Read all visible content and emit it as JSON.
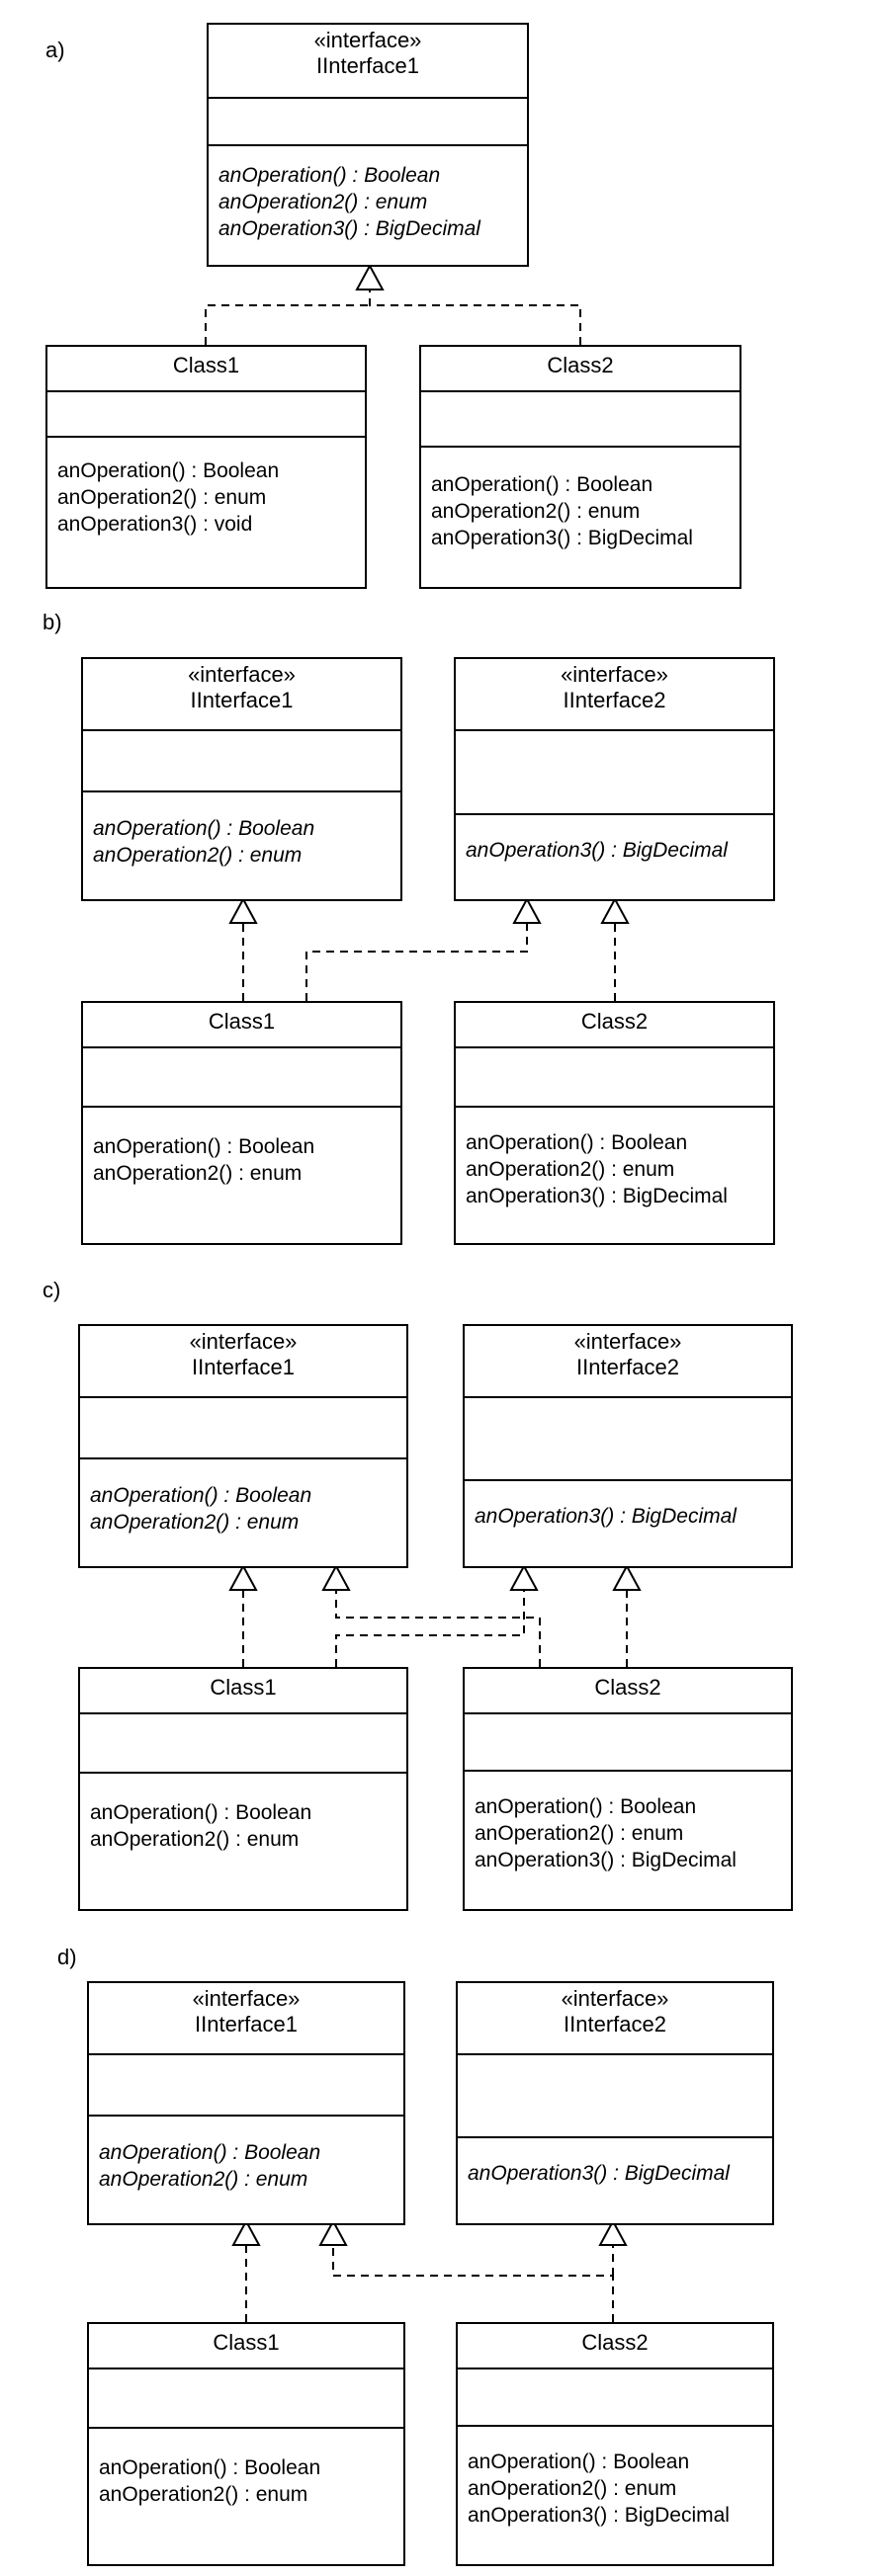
{
  "diagrams": [
    {
      "label": "a)",
      "interfaces": [
        {
          "stereotype": "«interface»",
          "name": "IInterface1",
          "operations": [
            "anOperation() : Boolean",
            "anOperation2() : enum",
            "anOperation3() : BigDecimal"
          ]
        }
      ],
      "classes": [
        {
          "name": "Class1",
          "operations": [
            "anOperation() : Boolean",
            "anOperation2() : enum",
            "anOperation3() : void"
          ]
        },
        {
          "name": "Class2",
          "operations": [
            "anOperation() : Boolean",
            "anOperation2() : enum",
            "anOperation3() : BigDecimal"
          ]
        }
      ]
    },
    {
      "label": "b)",
      "interfaces": [
        {
          "stereotype": "«interface»",
          "name": "IInterface1",
          "operations": [
            "anOperation() : Boolean",
            "anOperation2() : enum"
          ]
        },
        {
          "stereotype": "«interface»",
          "name": "IInterface2",
          "operations": [
            "anOperation3() : BigDecimal"
          ]
        }
      ],
      "classes": [
        {
          "name": "Class1",
          "operations": [
            "anOperation() : Boolean",
            "anOperation2() : enum"
          ]
        },
        {
          "name": "Class2",
          "operations": [
            "anOperation() : Boolean",
            "anOperation2() : enum",
            "anOperation3() : BigDecimal"
          ]
        }
      ]
    },
    {
      "label": "c)",
      "interfaces": [
        {
          "stereotype": "«interface»",
          "name": "IInterface1",
          "operations": [
            "anOperation() : Boolean",
            "anOperation2() : enum"
          ]
        },
        {
          "stereotype": "«interface»",
          "name": "IInterface2",
          "operations": [
            "anOperation3() : BigDecimal"
          ]
        }
      ],
      "classes": [
        {
          "name": "Class1",
          "operations": [
            "anOperation() : Boolean",
            "anOperation2() : enum"
          ]
        },
        {
          "name": "Class2",
          "operations": [
            "anOperation() : Boolean",
            "anOperation2() : enum",
            "anOperation3() : BigDecimal"
          ]
        }
      ]
    },
    {
      "label": "d)",
      "interfaces": [
        {
          "stereotype": "«interface»",
          "name": "IInterface1",
          "operations": [
            "anOperation() : Boolean",
            "anOperation2() : enum"
          ]
        },
        {
          "stereotype": "«interface»",
          "name": "IInterface2",
          "operations": [
            "anOperation3() : BigDecimal"
          ]
        }
      ],
      "classes": [
        {
          "name": "Class1",
          "operations": [
            "anOperation() : Boolean",
            "anOperation2() : enum"
          ]
        },
        {
          "name": "Class2",
          "operations": [
            "anOperation() : Boolean",
            "anOperation2() : enum",
            "anOperation3() : BigDecimal"
          ]
        }
      ]
    }
  ]
}
